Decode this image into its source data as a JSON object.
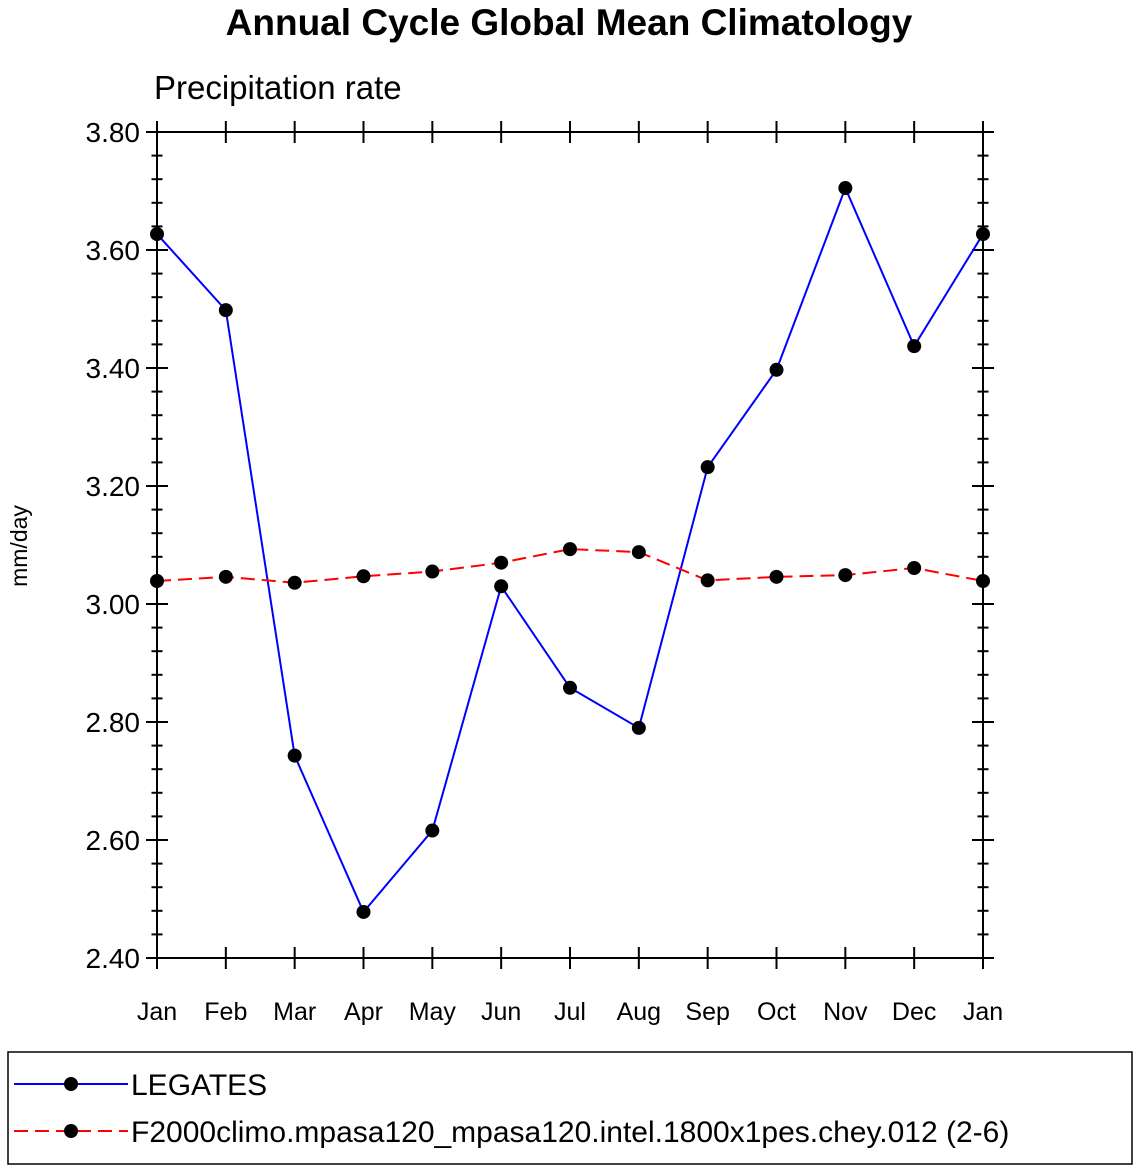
{
  "chart_data": {
    "type": "line",
    "title": "Annual Cycle Global Mean Climatology",
    "subtitle": "Precipitation rate",
    "xlabel": "",
    "ylabel": "mm/day",
    "categories": [
      "Jan",
      "Feb",
      "Mar",
      "Apr",
      "May",
      "Jun",
      "Jul",
      "Aug",
      "Sep",
      "Oct",
      "Nov",
      "Dec",
      "Jan"
    ],
    "ylim": [
      2.4,
      3.8
    ],
    "yticks": [
      "2.40",
      "2.60",
      "2.80",
      "3.00",
      "3.20",
      "3.40",
      "3.60",
      "3.80"
    ],
    "grid": false,
    "legend_position": "bottom",
    "series": [
      {
        "name": "LEGATES",
        "color": "#0000ff",
        "line_style": "solid",
        "marker": "filled-circle",
        "values": [
          3.627,
          3.498,
          2.743,
          2.478,
          2.616,
          3.03,
          2.858,
          2.79,
          3.232,
          3.397,
          3.705,
          3.437,
          3.627
        ]
      },
      {
        "name": "F2000climo.mpasa120_mpasa120.intel.1800x1pes.chey.012 (2-6)",
        "color": "#ff0000",
        "line_style": "dashed",
        "marker": "filled-circle",
        "values": [
          3.039,
          3.046,
          3.036,
          3.047,
          3.055,
          3.07,
          3.093,
          3.088,
          3.04,
          3.046,
          3.049,
          3.061,
          3.039
        ]
      }
    ]
  }
}
